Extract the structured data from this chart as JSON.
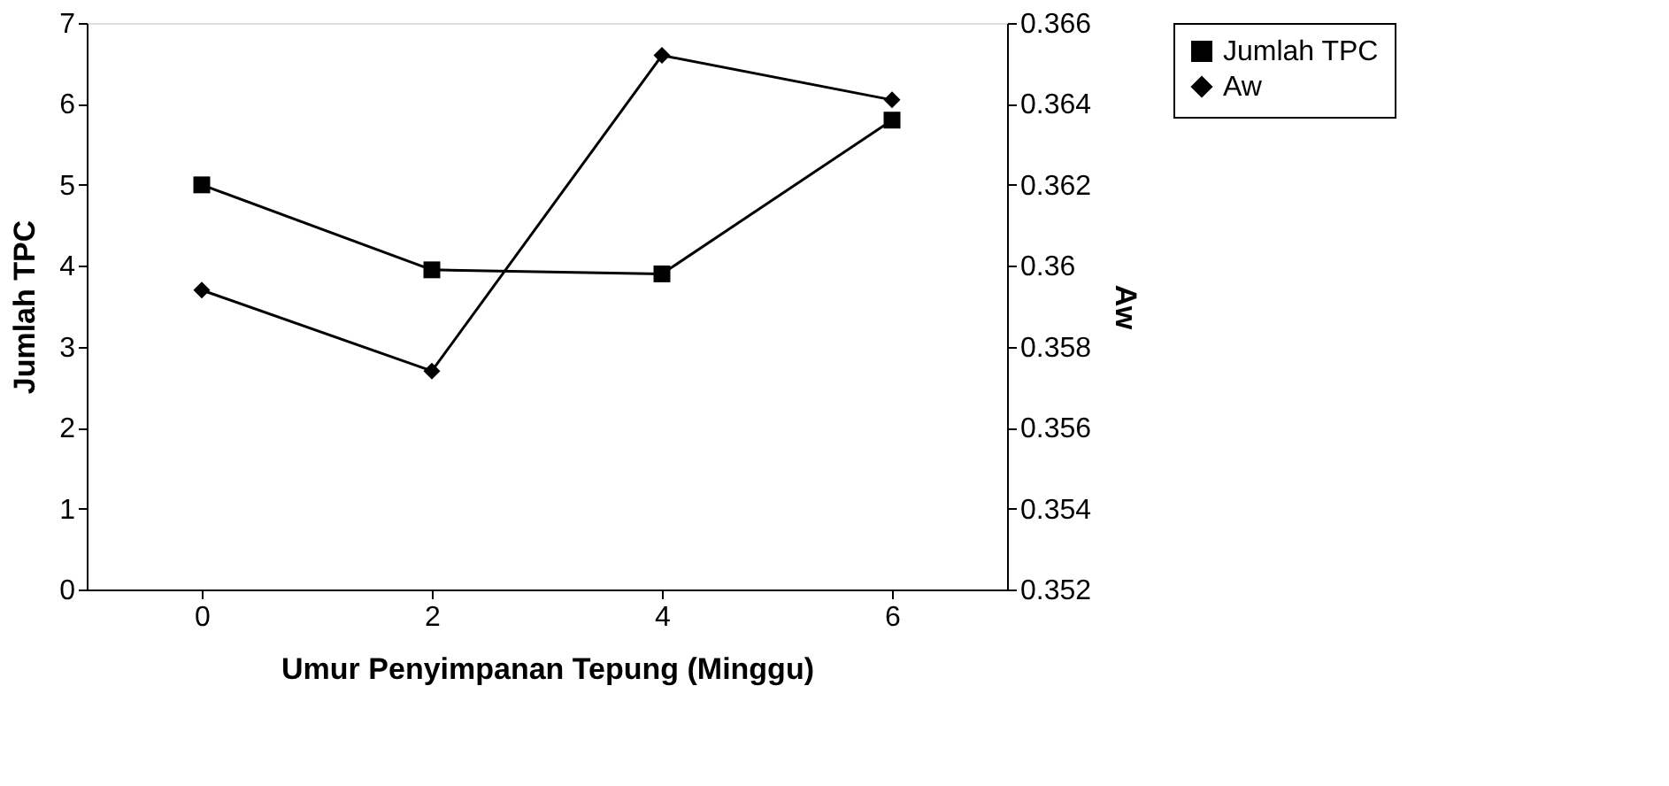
{
  "chart_data": {
    "type": "line",
    "xlabel": "Umur Penyimpanan Tepung (Minggu)",
    "ylabel": "Jumlah TPC",
    "y2label": "Aw",
    "categories": [
      "0",
      "2",
      "4",
      "6"
    ],
    "ylim": [
      0,
      7
    ],
    "yticks": [
      0,
      1,
      2,
      3,
      4,
      5,
      6,
      7
    ],
    "y2lim": [
      0.352,
      0.366
    ],
    "y2ticks": [
      0.352,
      0.354,
      0.356,
      0.358,
      0.36,
      0.362,
      0.364,
      0.366
    ],
    "series": [
      {
        "name": "Jumlah TPC",
        "color": "#000000",
        "marker": "square",
        "values": [
          5,
          3.95,
          3.9,
          5.8
        ]
      },
      {
        "name": "Aw",
        "color": "#000000",
        "marker": "diamond",
        "axis": "y2",
        "values": [
          0.3594,
          0.3574,
          0.3652,
          0.3641
        ]
      }
    ],
    "grid": false,
    "legend": "right"
  }
}
